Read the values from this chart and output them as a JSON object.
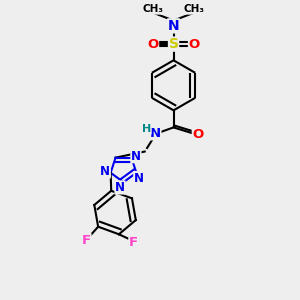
{
  "bg_color": "#eeeeee",
  "atom_colors": {
    "C": "#000000",
    "N": "#0000ee",
    "O": "#ff0000",
    "S": "#cccc00",
    "F": "#ff44cc",
    "H": "#008888"
  },
  "bond_color": "#000000",
  "bond_width": 1.5,
  "dbo": 0.08
}
